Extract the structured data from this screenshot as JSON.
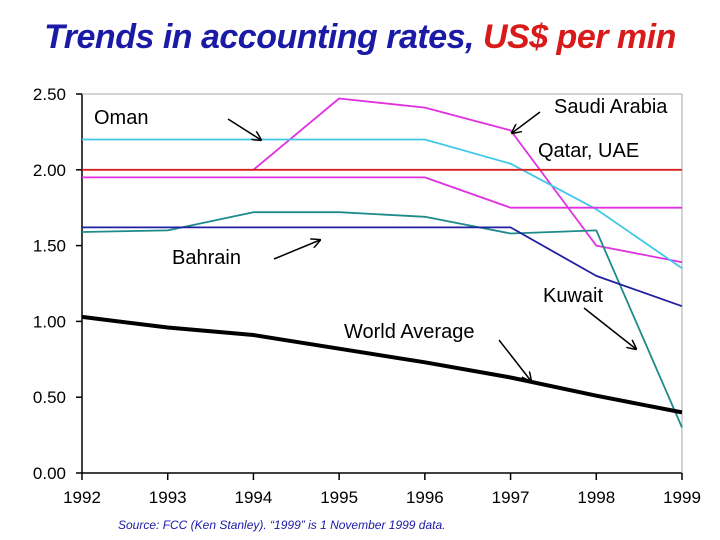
{
  "title": {
    "main": "Trends in accounting rates,",
    "unit": "US$ per min"
  },
  "source": "Source: FCC (Ken Stanley). “1999” is 1 November 1999 data.",
  "chart_data": {
    "type": "line",
    "x": [
      1992,
      1993,
      1994,
      1995,
      1996,
      1997,
      1998,
      1999
    ],
    "xlim": [
      1992,
      1999
    ],
    "ylim": [
      0,
      2.5
    ],
    "xticks": [
      "1992",
      "1993",
      "1994",
      "1995",
      "1996",
      "1997",
      "1998",
      "1999"
    ],
    "yticks": [
      "0.00",
      "0.50",
      "1.00",
      "1.50",
      "2.00",
      "2.50"
    ],
    "grid": false,
    "series": [
      {
        "name": "Oman",
        "color": "#e030e0",
        "points": [
          [
            1994,
            2.0
          ],
          [
            1995,
            2.47
          ],
          [
            1996,
            2.41
          ],
          [
            1997,
            2.26
          ],
          [
            1998,
            1.5
          ],
          [
            1999,
            1.39
          ]
        ]
      },
      {
        "name": "Saudi Arabia",
        "color": "#40c8e8",
        "points": [
          [
            1992,
            2.2
          ],
          [
            1993,
            2.2
          ],
          [
            1994,
            2.2
          ],
          [
            1995,
            2.2
          ],
          [
            1996,
            2.2
          ],
          [
            1997,
            2.04
          ],
          [
            1998,
            1.74
          ],
          [
            1999,
            1.35
          ]
        ]
      },
      {
        "name": "Qatar, UAE",
        "color": "#d82020",
        "points": [
          [
            1992,
            2.0
          ],
          [
            1999,
            2.0
          ]
        ]
      },
      {
        "name": "Qatar, UAE",
        "color": "#e030e0",
        "points": [
          [
            1992,
            1.95
          ],
          [
            1993,
            1.95
          ],
          [
            1994,
            1.95
          ],
          [
            1995,
            1.95
          ],
          [
            1996,
            1.95
          ],
          [
            1997,
            1.75
          ],
          [
            1998,
            1.75
          ],
          [
            1999,
            1.75
          ]
        ]
      },
      {
        "name": "Bahrain",
        "color": "#1f8a8a",
        "points": [
          [
            1992,
            1.59
          ],
          [
            1993,
            1.6
          ],
          [
            1994,
            1.72
          ],
          [
            1995,
            1.72
          ],
          [
            1996,
            1.69
          ],
          [
            1997,
            1.58
          ],
          [
            1998,
            1.6
          ],
          [
            1999,
            0.3
          ]
        ]
      },
      {
        "name": "Kuwait",
        "color": "#2020a0",
        "points": [
          [
            1992,
            1.62
          ],
          [
            1993,
            1.62
          ],
          [
            1994,
            1.62
          ],
          [
            1995,
            1.62
          ],
          [
            1996,
            1.62
          ],
          [
            1997,
            1.62
          ],
          [
            1998,
            1.3
          ],
          [
            1999,
            1.1
          ]
        ]
      },
      {
        "name": "World Average",
        "color": "#000000",
        "points": [
          [
            1992,
            1.03
          ],
          [
            1993,
            0.96
          ],
          [
            1994,
            0.91
          ],
          [
            1995,
            0.82
          ],
          [
            1996,
            0.73
          ],
          [
            1997,
            0.63
          ],
          [
            1998,
            0.51
          ],
          [
            1999,
            0.4
          ]
        ]
      }
    ],
    "annotations": [
      {
        "text": "Oman"
      },
      {
        "text": "Saudi Arabia"
      },
      {
        "text": "Qatar, UAE"
      },
      {
        "text": "Bahrain"
      },
      {
        "text": "Kuwait"
      },
      {
        "text": "World Average"
      }
    ]
  }
}
